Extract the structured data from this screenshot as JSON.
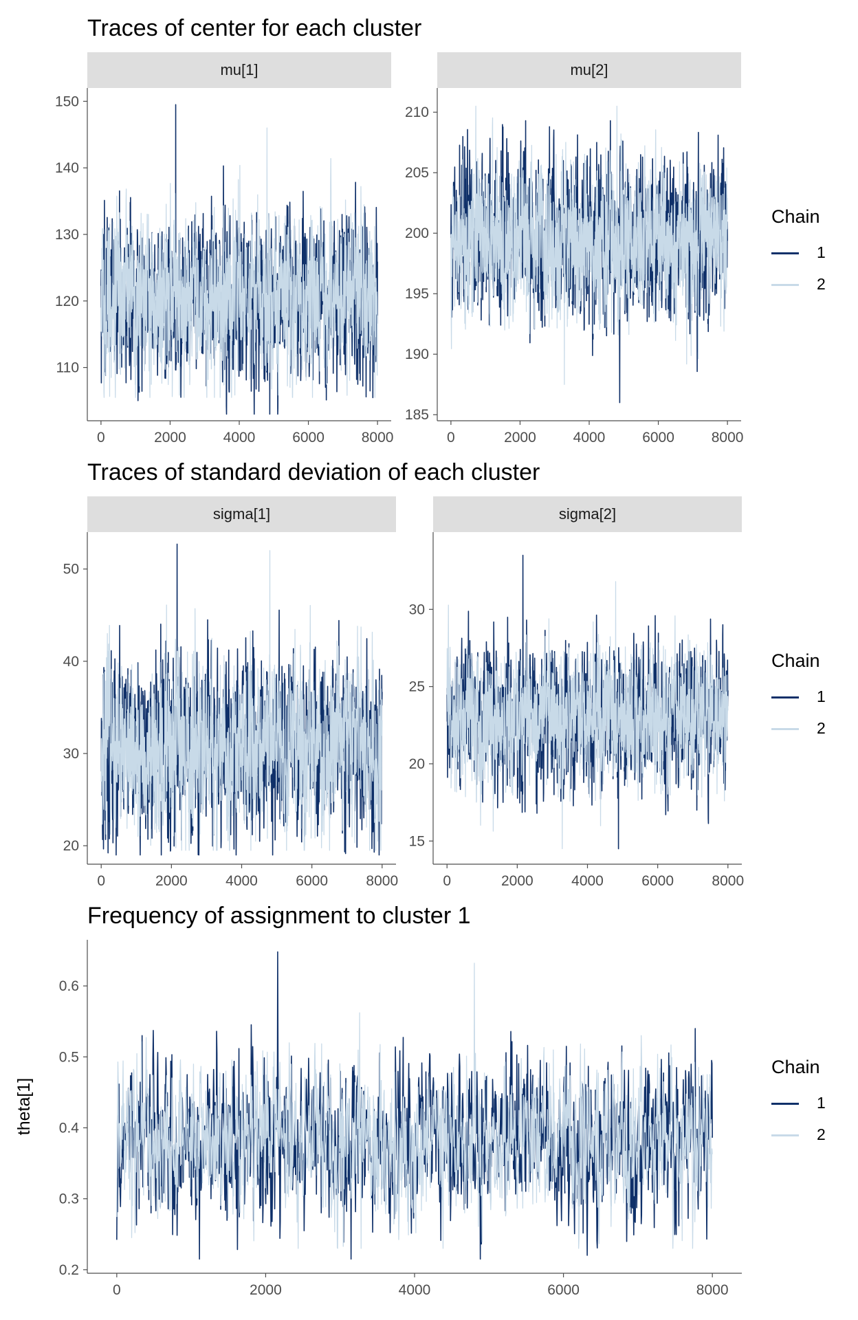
{
  "colors": {
    "chain1": "#0f3069",
    "chain2": "#c8dae8",
    "strip": "#dedede",
    "axis": "#4d4d4d"
  },
  "legend": {
    "title": "Chain",
    "labels": [
      "1",
      "2"
    ]
  },
  "sections": {
    "centers": {
      "title": "Traces of center for each cluster"
    },
    "sds": {
      "title": "Traces of standard deviation of each cluster"
    },
    "freq": {
      "title": "Frequency of assignment to cluster 1"
    }
  },
  "chart_data": [
    {
      "type": "line",
      "panel": "mu[1]",
      "xlabel": "",
      "ylabel": "",
      "xlim": [
        0,
        8000
      ],
      "ylim": [
        102,
        152
      ],
      "x_ticks": [
        0,
        2000,
        4000,
        6000,
        8000
      ],
      "y_ticks": [
        110,
        120,
        130,
        140,
        150
      ],
      "series": [
        {
          "name": "1",
          "center": 120.5,
          "chain_mean": 120.5,
          "spread": 6.0,
          "min": 103.0,
          "max": 149.5
        },
        {
          "name": "2",
          "center": 120.5,
          "chain_mean": 120.5,
          "spread": 6.0,
          "min": 105.5,
          "max": 146.0
        }
      ]
    },
    {
      "type": "line",
      "panel": "mu[2]",
      "xlabel": "",
      "ylabel": "",
      "xlim": [
        0,
        8000
      ],
      "ylim": [
        184.5,
        212
      ],
      "x_ticks": [
        0,
        2000,
        4000,
        6000,
        8000
      ],
      "y_ticks": [
        185,
        190,
        195,
        200,
        205,
        210
      ],
      "series": [
        {
          "name": "1",
          "chain_mean": 199.5,
          "spread": 3.3,
          "min": 186.0,
          "max": 209.3
        },
        {
          "name": "2",
          "chain_mean": 199.5,
          "spread": 3.3,
          "min": 187.5,
          "max": 210.5
        }
      ]
    },
    {
      "type": "line",
      "panel": "sigma[1]",
      "xlabel": "",
      "ylabel": "",
      "xlim": [
        0,
        8000
      ],
      "ylim": [
        18,
        54
      ],
      "x_ticks": [
        0,
        2000,
        4000,
        6000,
        8000
      ],
      "y_ticks": [
        20,
        30,
        40,
        50
      ],
      "series": [
        {
          "name": "1",
          "chain_mean": 30.5,
          "spread": 4.8,
          "min": 19.0,
          "max": 52.7
        },
        {
          "name": "2",
          "chain_mean": 30.5,
          "spread": 4.8,
          "min": 19.5,
          "max": 52.0
        }
      ]
    },
    {
      "type": "line",
      "panel": "sigma[2]",
      "xlabel": "",
      "ylabel": "",
      "xlim": [
        0,
        8000
      ],
      "ylim": [
        13.5,
        35
      ],
      "x_ticks": [
        0,
        2000,
        4000,
        6000,
        8000
      ],
      "y_ticks": [
        15,
        20,
        25,
        30
      ],
      "series": [
        {
          "name": "1",
          "chain_mean": 23.0,
          "spread": 2.2,
          "min": 14.5,
          "max": 33.5
        },
        {
          "name": "2",
          "chain_mean": 23.0,
          "spread": 2.2,
          "min": 14.5,
          "max": 31.8
        }
      ]
    },
    {
      "type": "line",
      "panel": "theta[1]",
      "xlabel": "",
      "ylabel": "theta[1]",
      "xlim": [
        0,
        8000
      ],
      "ylim": [
        0.195,
        0.665
      ],
      "x_ticks": [
        0,
        2000,
        4000,
        6000,
        8000
      ],
      "y_ticks": [
        0.2,
        0.3,
        0.4,
        0.5,
        0.6
      ],
      "series": [
        {
          "name": "1",
          "chain_mean": 0.38,
          "spread": 0.055,
          "min": 0.215,
          "max": 0.648
        },
        {
          "name": "2",
          "chain_mean": 0.38,
          "spread": 0.055,
          "min": 0.23,
          "max": 0.632
        }
      ]
    }
  ]
}
